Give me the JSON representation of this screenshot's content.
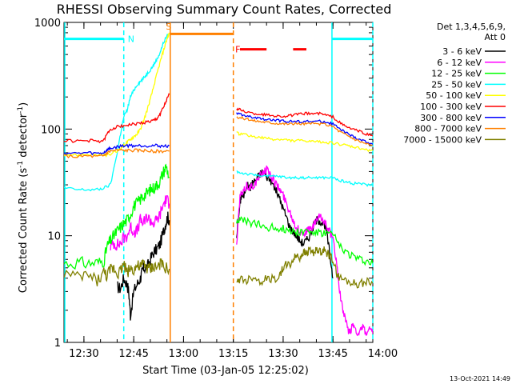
{
  "chart_data": {
    "type": "line",
    "title": "RHESSI Observing Summary Count Rates, Corrected",
    "xlabel": "Start Time (03-Jan-05 12:25:02)",
    "ylabel_main": "Corrected Count Rate (s",
    "ylabel_sup1": "-1",
    "ylabel_mid": " detector",
    "ylabel_sup2": "-1",
    "ylabel_end": ")",
    "yscale": "log",
    "ylim": [
      1,
      1000
    ],
    "xlim_min": [
      -1,
      92
    ],
    "x_ticks": [
      {
        "label": "12:30",
        "min": 5
      },
      {
        "label": "12:45",
        "min": 20
      },
      {
        "label": "13:00",
        "min": 35
      },
      {
        "label": "13:15",
        "min": 50
      },
      {
        "label": "13:30",
        "min": 65
      },
      {
        "label": "13:45",
        "min": 80
      },
      {
        "label": "14:00",
        "min": 95
      }
    ],
    "y_ticks": [
      {
        "label": "1",
        "value": 1
      },
      {
        "label": "10",
        "value": 10
      },
      {
        "label": "100",
        "value": 100
      },
      {
        "label": "1000",
        "value": 1000
      }
    ],
    "legend_header": [
      "Det 1,3,4,5,6,9,",
      "Att 0"
    ],
    "legend_position": "right",
    "series": [
      {
        "name": "3 - 6 keV",
        "color": "#000000",
        "x": [
          15,
          16,
          17,
          18,
          18.5,
          19,
          20,
          21,
          22,
          22.5,
          23,
          24,
          25,
          26,
          27,
          28,
          29,
          29.6,
          30.2,
          30.7
        ],
        "y": [
          3.3,
          3.2,
          4.0,
          3.5,
          3.0,
          1.8,
          3.0,
          3.5,
          4.0,
          4.5,
          5.0,
          5.0,
          6.0,
          7.0,
          7.5,
          8.5,
          11,
          13,
          15,
          14
        ]
      },
      {
        "name": "6 - 12 keV",
        "color": "#ff00ff",
        "x": [
          13,
          14,
          15,
          16,
          17,
          18,
          19,
          20,
          21,
          22,
          23,
          24,
          25,
          26,
          27,
          28,
          29,
          29.8,
          30.7
        ],
        "y": [
          8.0,
          8.5,
          8.2,
          8.5,
          9.5,
          10,
          12,
          11,
          11,
          14,
          13,
          15,
          14,
          13,
          14,
          16,
          20,
          22,
          20
        ]
      },
      {
        "name": "12 - 25 keV",
        "color": "#00ff00",
        "x": [
          -1,
          3,
          6,
          9,
          11,
          12,
          13,
          14,
          15,
          16,
          17,
          18,
          19,
          20,
          21,
          22,
          23,
          24,
          25,
          26,
          27,
          28,
          29,
          29.8,
          30.7
        ],
        "y": [
          5.5,
          5.6,
          5.5,
          5.6,
          5.8,
          8.0,
          9.0,
          10,
          11,
          12,
          13,
          14,
          16,
          19,
          20,
          22,
          24,
          25,
          27,
          28,
          30,
          33,
          40,
          45,
          35
        ]
      },
      {
        "name": "25 - 50 keV",
        "color": "#00ffff",
        "x": [
          -1,
          3,
          6,
          9,
          11,
          13,
          15,
          16,
          17,
          18,
          19,
          20,
          21,
          22,
          23,
          24,
          25,
          26,
          27,
          28,
          29,
          30,
          30.7
        ],
        "y": [
          28,
          27,
          27,
          27,
          28,
          30,
          60,
          90,
          130,
          150,
          200,
          230,
          260,
          280,
          300,
          330,
          360,
          400,
          450,
          530,
          650,
          750,
          780
        ]
      },
      {
        "name": "50 - 100 keV",
        "color": "#ffff00",
        "x": [
          -1,
          3,
          6,
          9,
          11,
          13,
          15,
          16,
          17,
          18,
          19,
          20,
          21,
          22,
          23,
          24,
          25,
          26,
          27,
          28,
          29,
          30,
          30.7
        ],
        "y": [
          58,
          57,
          58,
          57,
          57,
          58,
          62,
          66,
          70,
          75,
          80,
          85,
          90,
          100,
          120,
          150,
          190,
          250,
          330,
          430,
          550,
          700,
          800
        ]
      },
      {
        "name": "100 - 300 keV",
        "color": "#ff0000",
        "x": [
          -1,
          3,
          6,
          9,
          11,
          12,
          13,
          15,
          17,
          19,
          21,
          23,
          25,
          26,
          27,
          28,
          29,
          30,
          30.7
        ],
        "y": [
          78,
          77,
          78,
          77,
          78,
          90,
          100,
          105,
          108,
          110,
          112,
          115,
          118,
          120,
          125,
          140,
          160,
          190,
          210
        ]
      },
      {
        "name": "300 - 800 keV",
        "color": "#0000ff",
        "x": [
          -1,
          3,
          6,
          9,
          11,
          12,
          13,
          15,
          17,
          19,
          21,
          23,
          25,
          27,
          29,
          30.7
        ],
        "y": [
          60,
          59,
          60,
          59,
          60,
          64,
          66,
          68,
          70,
          70,
          70,
          70,
          70,
          70,
          69,
          70
        ]
      },
      {
        "name": "800 - 7000 keV",
        "color": "#ff8000",
        "x": [
          -1,
          3,
          6,
          9,
          11,
          12,
          13,
          15,
          17,
          19,
          21,
          23,
          25,
          27,
          29,
          30.7
        ],
        "y": [
          56,
          55,
          56,
          55,
          56,
          60,
          62,
          63,
          63,
          63,
          63,
          63,
          62,
          62,
          62,
          62
        ]
      },
      {
        "name": "7000 - 15000 keV",
        "color": "#808000",
        "x": [
          -1,
          3,
          6,
          9,
          11,
          12,
          13,
          14,
          15,
          16,
          17,
          18,
          19,
          20,
          21,
          22,
          23,
          24,
          25,
          26,
          27,
          28,
          29,
          30.7
        ],
        "y": [
          4.5,
          4.0,
          4.3,
          3.8,
          4.5,
          4.2,
          4.8,
          5.0,
          4.5,
          4.7,
          5.5,
          4.5,
          5.0,
          4.8,
          5.2,
          5.0,
          5.5,
          5.0,
          4.8,
          5.2,
          5.0,
          5.5,
          5.0,
          4.9
        ]
      }
    ],
    "series_after_gap": [
      {
        "color": "#000000",
        "x": [
          51,
          52,
          52.5,
          53,
          54,
          55,
          55.5,
          56,
          57,
          58,
          59,
          60,
          61,
          62,
          63,
          64,
          65,
          66,
          67,
          68,
          69,
          70,
          71,
          72,
          73,
          74,
          75,
          76,
          77,
          78,
          79,
          80
        ],
        "y": [
          10,
          20,
          25,
          23,
          30,
          28,
          30,
          32,
          34,
          38,
          40,
          36,
          34,
          30,
          26,
          22,
          18,
          15,
          12,
          11,
          10,
          9,
          8.5,
          9,
          10,
          12,
          14,
          14,
          13,
          11,
          7,
          4
        ]
      },
      {
        "color": "#ff00ff",
        "x": [
          51,
          52,
          53,
          54,
          55,
          56,
          57,
          58,
          59,
          60,
          61,
          62,
          63,
          64,
          65,
          66,
          67,
          68,
          69,
          70,
          71,
          72,
          73,
          74,
          75,
          76,
          77,
          78,
          79,
          80,
          81,
          82,
          83,
          84,
          85,
          86,
          87,
          88,
          89,
          90,
          91,
          92
        ],
        "y": [
          8,
          24,
          25,
          30,
          28,
          30,
          32,
          36,
          40,
          42,
          38,
          34,
          30,
          27,
          24,
          20,
          17,
          14,
          12,
          11,
          10.5,
          11,
          11.5,
          12,
          14,
          15,
          14,
          13,
          11,
          9,
          6,
          3,
          2,
          1.5,
          1.2,
          1.5,
          1.3,
          1.2,
          1.4,
          1.2,
          1.3,
          1.2
        ]
      },
      {
        "color": "#00ff00",
        "x": [
          51,
          52,
          54,
          56,
          58,
          60,
          62,
          64,
          66,
          68,
          70,
          72,
          74,
          76,
          78,
          80,
          82,
          84,
          86,
          88,
          90,
          92
        ],
        "y": [
          14,
          14,
          13.5,
          13,
          12.5,
          12,
          12,
          11.8,
          11.5,
          11,
          11,
          11,
          10.8,
          10.5,
          10.5,
          10.2,
          8,
          7,
          6.5,
          6.0,
          5.8,
          5.5
        ]
      },
      {
        "color": "#00ffff",
        "x": [
          51,
          52,
          54,
          56,
          58,
          60,
          62,
          64,
          66,
          68,
          70,
          72,
          74,
          76,
          78,
          80,
          82,
          84,
          86,
          88,
          90,
          92
        ],
        "y": [
          40,
          39,
          38,
          37,
          37,
          36,
          36,
          36,
          35,
          35,
          35,
          35,
          35,
          35,
          35,
          35,
          33,
          32,
          31,
          31,
          30,
          30
        ]
      },
      {
        "color": "#ffff00",
        "x": [
          51,
          52,
          54,
          56,
          58,
          60,
          62,
          64,
          66,
          68,
          70,
          72,
          74,
          76,
          78,
          80,
          82,
          84,
          86,
          88,
          90,
          92
        ],
        "y": [
          92,
          90,
          88,
          85,
          83,
          82,
          80,
          80,
          79,
          78,
          78,
          77,
          76,
          76,
          75,
          74,
          72,
          70,
          68,
          66,
          64,
          63
        ]
      },
      {
        "color": "#ff0000",
        "x": [
          51,
          52,
          54,
          56,
          58,
          60,
          62,
          64,
          66,
          68,
          70,
          72,
          74,
          76,
          78,
          80,
          82,
          84,
          86,
          88,
          90,
          92
        ],
        "y": [
          155,
          152,
          145,
          140,
          138,
          136,
          134,
          132,
          132,
          135,
          138,
          140,
          140,
          140,
          135,
          130,
          115,
          105,
          100,
          95,
          90,
          86
        ]
      },
      {
        "color": "#0000ff",
        "x": [
          51,
          52,
          54,
          56,
          58,
          60,
          62,
          64,
          66,
          68,
          70,
          72,
          74,
          76,
          78,
          80,
          82,
          84,
          86,
          88,
          90,
          92
        ],
        "y": [
          140,
          138,
          132,
          128,
          125,
          123,
          121,
          120,
          118,
          118,
          118,
          118,
          118,
          118,
          116,
          112,
          100,
          92,
          85,
          80,
          76,
          72
        ]
      },
      {
        "color": "#ff8000",
        "x": [
          51,
          52,
          54,
          56,
          58,
          60,
          62,
          64,
          66,
          68,
          70,
          72,
          74,
          76,
          78,
          80,
          82,
          84,
          86,
          88,
          90,
          92
        ],
        "y": [
          130,
          128,
          124,
          120,
          118,
          116,
          114,
          113,
          112,
          112,
          112,
          112,
          112,
          112,
          110,
          106,
          95,
          88,
          82,
          77,
          73,
          70
        ]
      },
      {
        "color": "#808000",
        "x": [
          51,
          52,
          54,
          56,
          58,
          60,
          62,
          64,
          65,
          66,
          67,
          68,
          69,
          70,
          71,
          72,
          73,
          74,
          75,
          76,
          77,
          78,
          79,
          80,
          81,
          82,
          84,
          86,
          88,
          90,
          92
        ],
        "y": [
          3.5,
          4.0,
          3.8,
          4.2,
          3.7,
          4.0,
          3.9,
          4.2,
          5.0,
          5.5,
          5.2,
          6.0,
          6.5,
          6.2,
          7.0,
          6.8,
          7.5,
          7.0,
          7.2,
          7.0,
          7.5,
          7.0,
          6.5,
          6.0,
          4.5,
          4.0,
          3.8,
          3.6,
          3.5,
          3.7,
          3.6
        ]
      }
    ],
    "annotations": [
      {
        "text": "N",
        "color": "#00ffff",
        "x_min": 18.2,
        "y_value": 700
      },
      {
        "text": "S",
        "color": "#ff8000",
        "x_min": 29.7,
        "y_value": 920
      },
      {
        "text": "F",
        "color": "#ff0000",
        "x_min": 50.6,
        "y_value": 560
      }
    ],
    "night_boundaries_min": [
      {
        "x_min": 17.0,
        "style": "dashed",
        "color": "#00ffff"
      },
      {
        "x_min": 79.7,
        "style": "solid",
        "color": "#00ffff"
      },
      {
        "x_min": 92.0,
        "style": "dashed",
        "color": "#00ffff"
      }
    ],
    "saa_boundaries_min": [
      {
        "x_min": 31.0,
        "style": "solid",
        "color": "#ff8000"
      },
      {
        "x_min": 50.0,
        "style": "dashed",
        "color": "#ff8000"
      }
    ],
    "night_bars": [
      {
        "from_min": -1,
        "to_min": 17.0,
        "y_value": 700,
        "color": "#00ffff"
      },
      {
        "from_min": 79.7,
        "to_min": 92,
        "y_value": 700,
        "color": "#00ffff"
      }
    ],
    "saa_bar": {
      "from_min": 31.0,
      "to_min": 50.0,
      "y_value": 780,
      "color": "#ff8000"
    },
    "flare_bars": [
      {
        "from_min": 52,
        "to_min": 60,
        "y_value": 560,
        "color": "#ff0000"
      },
      {
        "from_min": 68,
        "to_min": 72,
        "y_value": 560,
        "color": "#ff0000"
      }
    ],
    "gap_min": [
      31.0,
      50.0
    ],
    "grid": false
  },
  "footer": {
    "timestamp": "13-Oct-2021 14:49"
  }
}
